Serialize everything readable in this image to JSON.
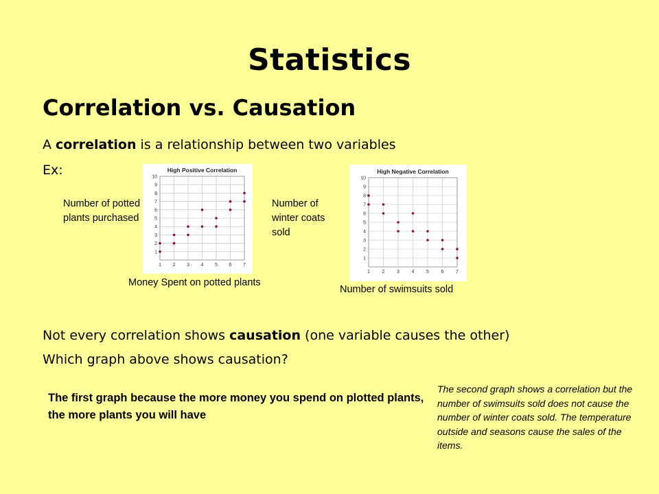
{
  "slide": {
    "title": "Statistics",
    "subtitle": "Correlation vs. Causation",
    "line1": {
      "pre": "A ",
      "bold": "correlation",
      "post": " is a relationship between two variables"
    },
    "line2": "Ex:",
    "line3": {
      "pre": "Not every correlation shows ",
      "bold": "causation",
      "post": " (one variable causes the other)"
    },
    "line4": "Which graph above shows causation?",
    "answer1": "The first graph because the more money you spend on plotted plants, the more plants you will have",
    "answer2": "The second graph shows a correlation but the number of swimsuits sold does not cause the number of winter coats sold.  The temperature outside and seasons cause the sales of the items."
  },
  "labels": {
    "chart1_y": "Number of potted plants purchased",
    "chart1_x": "Money Spent on potted plants",
    "chart2_y": "Number of winter coats sold",
    "chart2_x": "Number of swimsuits sold"
  },
  "colors": {
    "background": "#ffff99",
    "point": "#8b0a50",
    "grid": "#bbbbbb"
  },
  "chart_data": [
    {
      "type": "scatter",
      "title": "High Positive Correlation",
      "xlim": [
        1,
        7
      ],
      "ylim": [
        0,
        10
      ],
      "xticks": [
        1,
        2,
        3,
        4,
        5,
        6,
        7
      ],
      "yticks": [
        1,
        2,
        3,
        4,
        5,
        6,
        7,
        8,
        9,
        10
      ],
      "grid": true,
      "points": [
        [
          1,
          1
        ],
        [
          1,
          2
        ],
        [
          2,
          2
        ],
        [
          2,
          3
        ],
        [
          3,
          3
        ],
        [
          3,
          4
        ],
        [
          4,
          4
        ],
        [
          4,
          6
        ],
        [
          5,
          4
        ],
        [
          5,
          5
        ],
        [
          6,
          6
        ],
        [
          6,
          7
        ],
        [
          7,
          7
        ],
        [
          7,
          8
        ]
      ]
    },
    {
      "type": "scatter",
      "title": "High Negative Correlation",
      "xlim": [
        1,
        7
      ],
      "ylim": [
        0,
        10
      ],
      "xticks": [
        1,
        2,
        3,
        4,
        5,
        6,
        7
      ],
      "yticks": [
        1,
        2,
        3,
        4,
        5,
        6,
        7,
        8,
        9,
        10
      ],
      "grid": true,
      "points": [
        [
          1,
          8
        ],
        [
          1,
          7
        ],
        [
          2,
          7
        ],
        [
          2,
          6
        ],
        [
          3,
          5
        ],
        [
          3,
          4
        ],
        [
          4,
          6
        ],
        [
          4,
          4
        ],
        [
          5,
          4
        ],
        [
          5,
          3
        ],
        [
          6,
          3
        ],
        [
          6,
          2
        ],
        [
          7,
          2
        ],
        [
          7,
          1
        ]
      ]
    }
  ]
}
